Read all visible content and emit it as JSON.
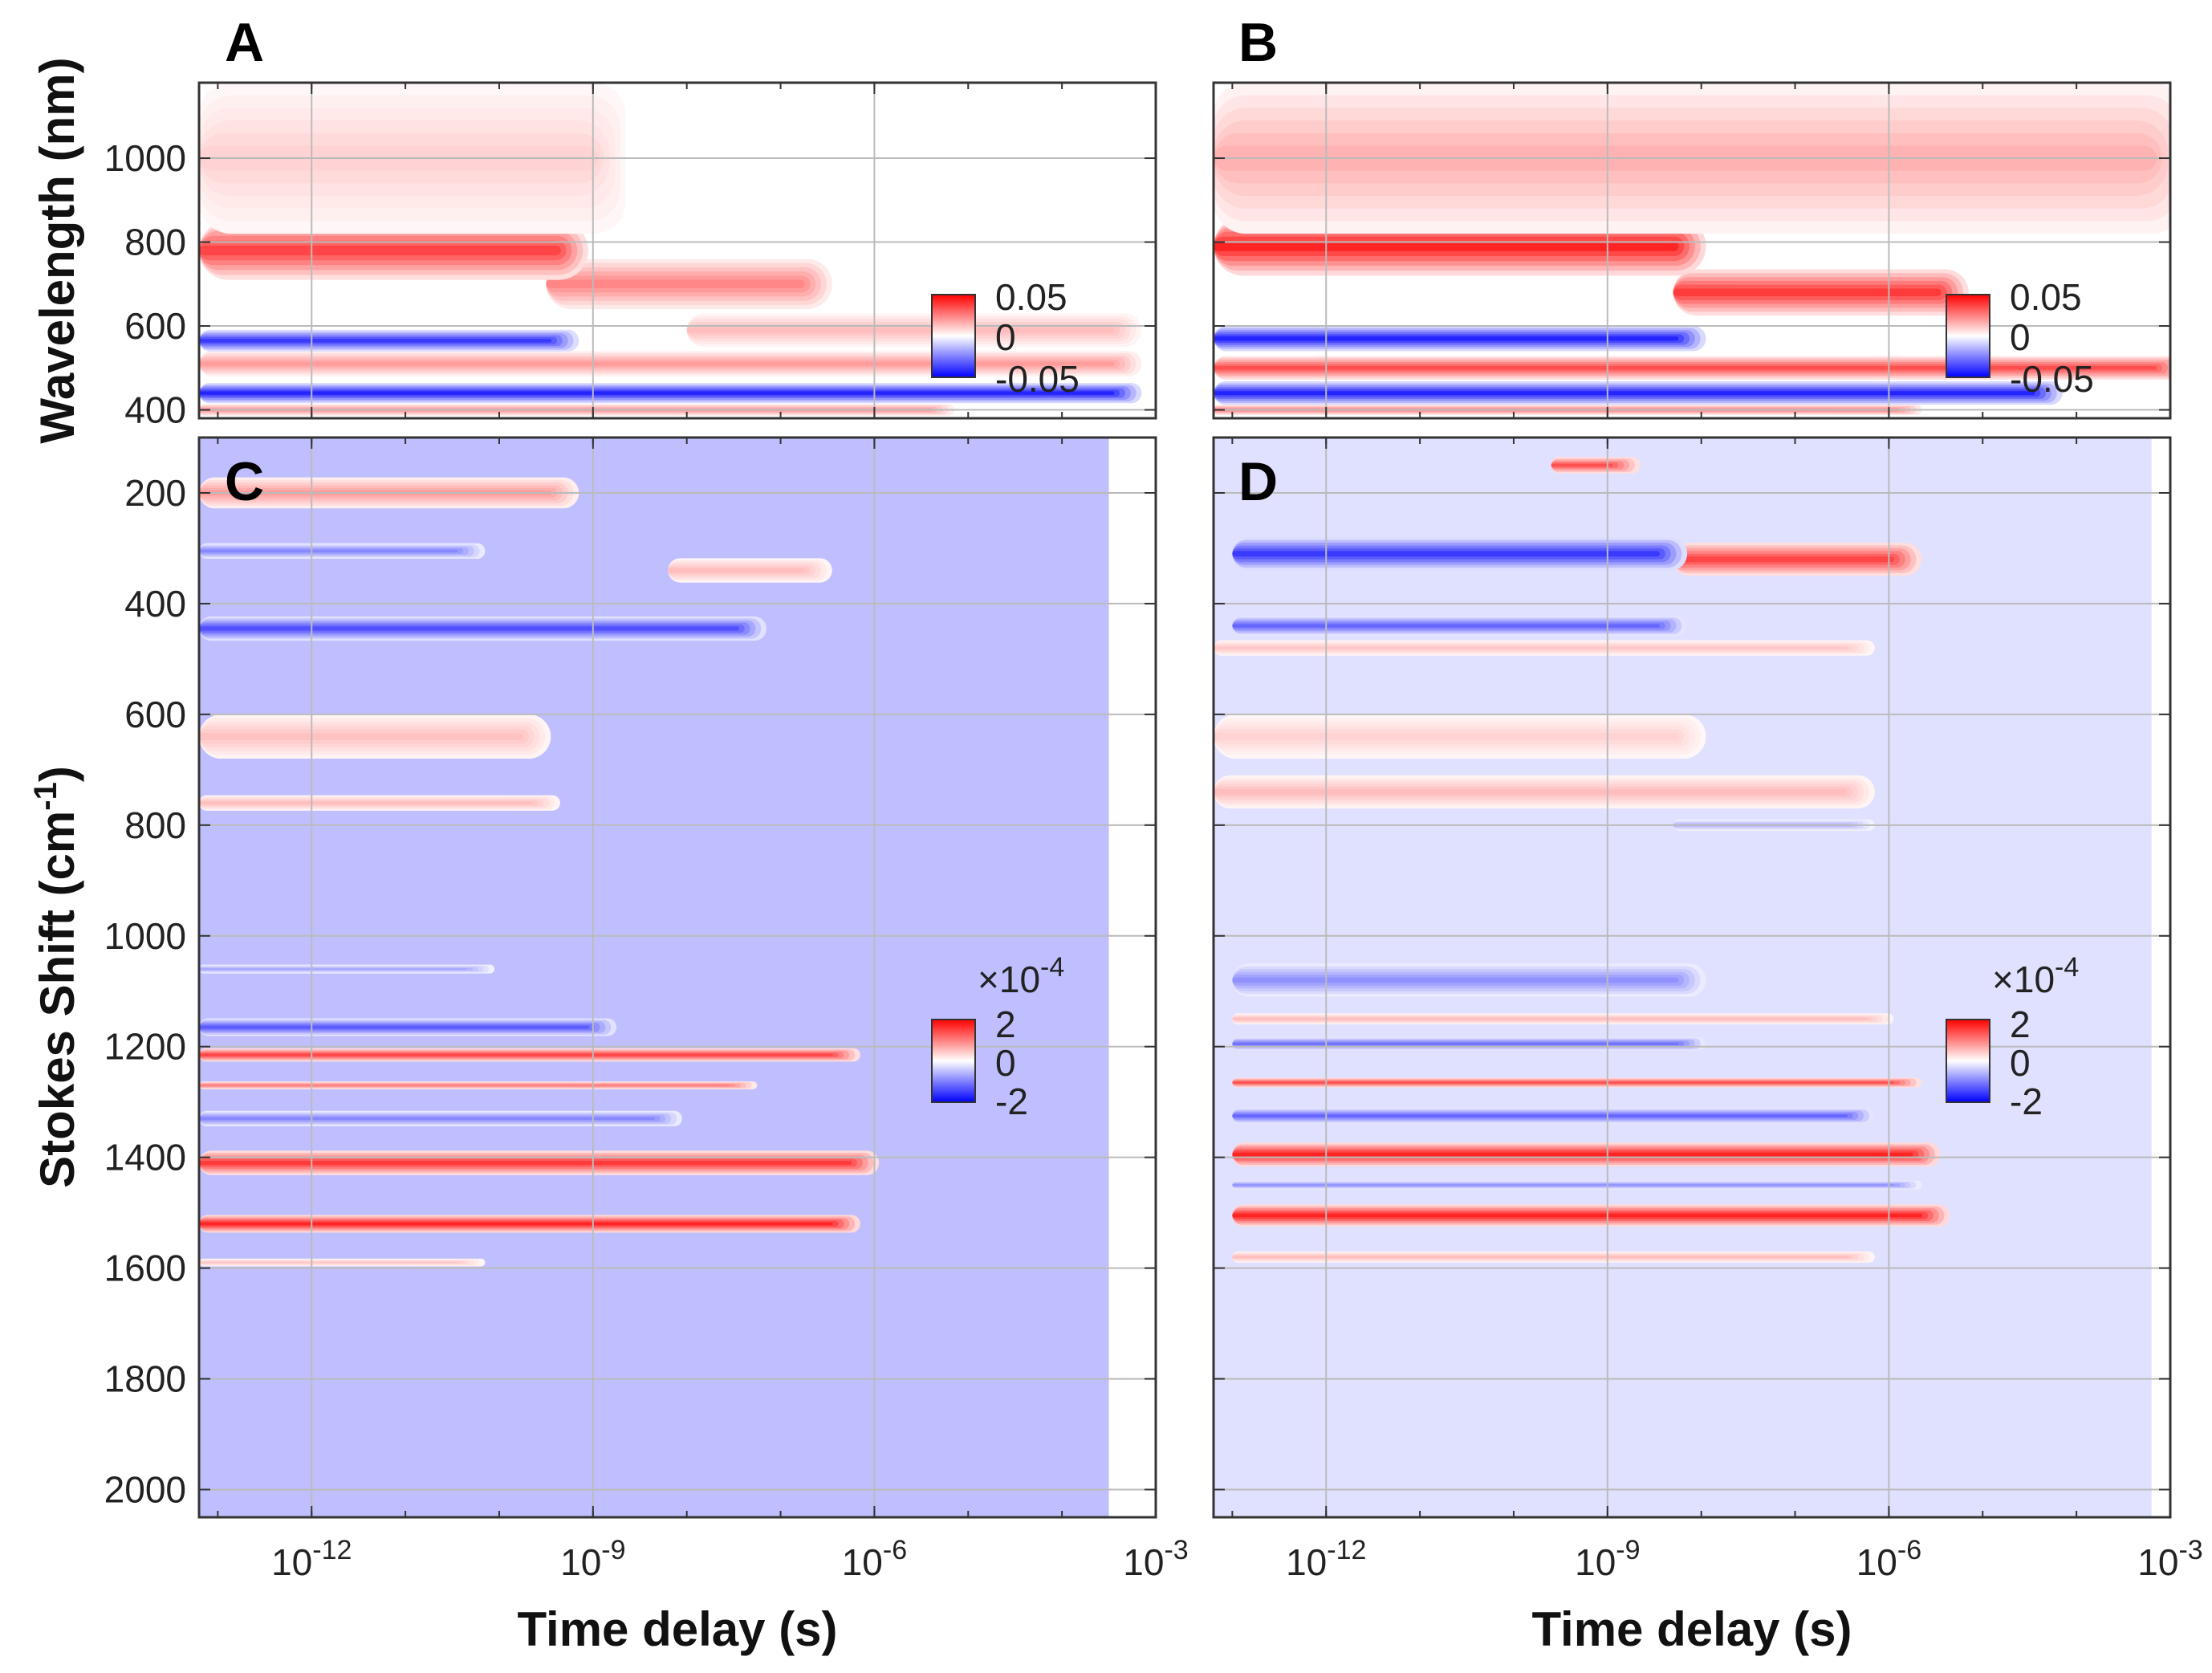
{
  "chart_data": [
    {
      "panel": "A",
      "type": "heatmap",
      "xlabel": "Time delay (s)",
      "ylabel": "Wavelength (nm)",
      "x_scale": "log",
      "xlim_exp": [
        -13.2,
        -3
      ],
      "ylim": [
        1180,
        380
      ],
      "yticks": [
        400,
        600,
        800,
        1000
      ],
      "colorbar": {
        "ticks": [
          "0.05",
          "0",
          "-0.05"
        ],
        "range": [
          -0.05,
          0.05
        ]
      },
      "bands": [
        {
          "center": 400,
          "width": 14,
          "amp": 0.5,
          "t_start": -13.2,
          "t_end": -5.5
        },
        {
          "center": 440,
          "width": 24,
          "amp": -1.0,
          "t_start": -13.2,
          "t_end": -3.5
        },
        {
          "center": 510,
          "width": 30,
          "amp": 0.45,
          "t_start": -13.2,
          "t_end": -3.5
        },
        {
          "center": 565,
          "width": 26,
          "amp": -0.9,
          "t_start": -13.2,
          "t_end": -9.5
        },
        {
          "center": 590,
          "width": 40,
          "amp": 0.3,
          "t_start": -8.0,
          "t_end": -3.5
        },
        {
          "center": 700,
          "width": 60,
          "amp": 0.55,
          "t_start": -9.5,
          "t_end": -6.8
        },
        {
          "center": 780,
          "width": 70,
          "amp": 0.85,
          "t_start": -13.2,
          "t_end": -9.4
        },
        {
          "center": 1000,
          "width": 180,
          "amp": 0.2,
          "t_start": -13.2,
          "t_end": -9.0
        }
      ]
    },
    {
      "panel": "B",
      "type": "heatmap",
      "xlabel": "Time delay (s)",
      "ylabel": "",
      "x_scale": "log",
      "xlim_exp": [
        -13.2,
        -3
      ],
      "ylim": [
        1180,
        380
      ],
      "colorbar": {
        "ticks": [
          "0.05",
          "0",
          "-0.05"
        ],
        "range": [
          -0.05,
          0.05
        ]
      },
      "bands": [
        {
          "center": 400,
          "width": 12,
          "amp": 0.6,
          "t_start": -13.2,
          "t_end": -6.0
        },
        {
          "center": 440,
          "width": 28,
          "amp": -1.0,
          "t_start": -13.2,
          "t_end": -4.5
        },
        {
          "center": 500,
          "width": 28,
          "amp": 0.8,
          "t_start": -13.2,
          "t_end": -3.2
        },
        {
          "center": 570,
          "width": 30,
          "amp": -1.0,
          "t_start": -13.2,
          "t_end": -8.3
        },
        {
          "center": 680,
          "width": 55,
          "amp": 0.9,
          "t_start": -8.3,
          "t_end": -5.5
        },
        {
          "center": 790,
          "width": 70,
          "amp": 1.0,
          "t_start": -13.2,
          "t_end": -8.3
        },
        {
          "center": 1000,
          "width": 180,
          "amp": 0.35,
          "t_start": -13.2,
          "t_end": -3.2
        }
      ]
    },
    {
      "panel": "C",
      "type": "heatmap",
      "xlabel": "Time delay (s)",
      "ylabel": "Stokes Shift (cm-1)",
      "x_scale": "log",
      "xlim_exp": [
        -13.2,
        -3
      ],
      "ylim": [
        100,
        2050
      ],
      "yticks": [
        200,
        400,
        600,
        800,
        1000,
        1200,
        1400,
        1600,
        1800,
        2000
      ],
      "colorbar": {
        "multiplier": "×10-4",
        "ticks": [
          "2",
          "0",
          "-2"
        ],
        "range": [
          -2,
          2
        ]
      },
      "background": {
        "amp": -0.25,
        "t_end": -3.5
      },
      "bands": [
        {
          "center": 1590,
          "width": 7,
          "amp": 0.25,
          "t_start": -13.2,
          "t_end": -10.5
        },
        {
          "center": 1520,
          "width": 16,
          "amp": 1.0,
          "t_start": -13.2,
          "t_end": -6.5
        },
        {
          "center": 1410,
          "width": 22,
          "amp": 0.9,
          "t_start": -13.2,
          "t_end": -6.3
        },
        {
          "center": 1330,
          "width": 14,
          "amp": -0.55,
          "t_start": -13.2,
          "t_end": -8.4
        },
        {
          "center": 1270,
          "width": 7,
          "amp": 0.6,
          "t_start": -13.2,
          "t_end": -7.6
        },
        {
          "center": 1215,
          "width": 12,
          "amp": 0.85,
          "t_start": -13.2,
          "t_end": -6.5
        },
        {
          "center": 1165,
          "width": 16,
          "amp": -0.75,
          "t_start": -13.2,
          "t_end": -9.1
        },
        {
          "center": 1060,
          "width": 8,
          "amp": -0.4,
          "t_start": -13.2,
          "t_end": -10.4
        },
        {
          "center": 760,
          "width": 14,
          "amp": 0.3,
          "t_start": -13.2,
          "t_end": -9.7
        },
        {
          "center": 640,
          "width": 40,
          "amp": 0.28,
          "t_start": -13.2,
          "t_end": -9.8
        },
        {
          "center": 445,
          "width": 22,
          "amp": -0.8,
          "t_start": -13.2,
          "t_end": -7.5
        },
        {
          "center": 340,
          "width": 22,
          "amp": 0.3,
          "t_start": -8.2,
          "t_end": -6.8
        },
        {
          "center": 305,
          "width": 14,
          "amp": -0.55,
          "t_start": -13.2,
          "t_end": -10.5
        },
        {
          "center": 200,
          "width": 28,
          "amp": 0.45,
          "t_start": -13.2,
          "t_end": -9.5
        }
      ]
    },
    {
      "panel": "D",
      "type": "heatmap",
      "xlabel": "Time delay (s)",
      "ylabel": "",
      "x_scale": "log",
      "xlim_exp": [
        -13.2,
        -3
      ],
      "ylim": [
        100,
        2050
      ],
      "colorbar": {
        "multiplier": "×10-4",
        "ticks": [
          "2",
          "0",
          "-2"
        ],
        "range": [
          -2,
          2
        ]
      },
      "background": {
        "amp": -0.12,
        "t_end": -3.2
      },
      "bands": [
        {
          "center": 1580,
          "width": 10,
          "amp": 0.3,
          "t_start": -13.0,
          "t_end": -6.5
        },
        {
          "center": 1505,
          "width": 20,
          "amp": 1.0,
          "t_start": -13.0,
          "t_end": -5.7
        },
        {
          "center": 1450,
          "width": 8,
          "amp": -0.5,
          "t_start": -13.0,
          "t_end": -6.0
        },
        {
          "center": 1395,
          "width": 22,
          "amp": 1.0,
          "t_start": -13.0,
          "t_end": -5.8
        },
        {
          "center": 1325,
          "width": 14,
          "amp": -0.7,
          "t_start": -13.0,
          "t_end": -6.5
        },
        {
          "center": 1265,
          "width": 9,
          "amp": 0.8,
          "t_start": -13.0,
          "t_end": -6.0
        },
        {
          "center": 1195,
          "width": 12,
          "amp": -0.65,
          "t_start": -13.0,
          "t_end": -8.3
        },
        {
          "center": 1150,
          "width": 10,
          "amp": 0.3,
          "t_start": -13.0,
          "t_end": -6.3
        },
        {
          "center": 1080,
          "width": 30,
          "amp": -0.5,
          "t_start": -13.0,
          "t_end": -8.3
        },
        {
          "center": 800,
          "width": 10,
          "amp": -0.35,
          "t_start": -8.3,
          "t_end": -6.5
        },
        {
          "center": 740,
          "width": 30,
          "amp": 0.3,
          "t_start": -13.2,
          "t_end": -6.5
        },
        {
          "center": 640,
          "width": 40,
          "amp": 0.2,
          "t_start": -13.2,
          "t_end": -8.3
        },
        {
          "center": 480,
          "width": 14,
          "amp": 0.25,
          "t_start": -13.2,
          "t_end": -6.5
        },
        {
          "center": 440,
          "width": 18,
          "amp": -0.7,
          "t_start": -13.0,
          "t_end": -8.5
        },
        {
          "center": 320,
          "width": 30,
          "amp": 0.85,
          "t_start": -8.3,
          "t_end": -6.0
        },
        {
          "center": 310,
          "width": 30,
          "amp": -0.9,
          "t_start": -13.0,
          "t_end": -8.5
        },
        {
          "center": 150,
          "width": 15,
          "amp": 0.8,
          "t_start": -9.6,
          "t_end": -9.0
        }
      ]
    }
  ],
  "axes": {
    "xtick_base": "10",
    "xtick_exponents": [
      "-12",
      "-9",
      "-6",
      "-3"
    ],
    "xtick_values": [
      -12,
      -9,
      -6,
      -3
    ]
  }
}
